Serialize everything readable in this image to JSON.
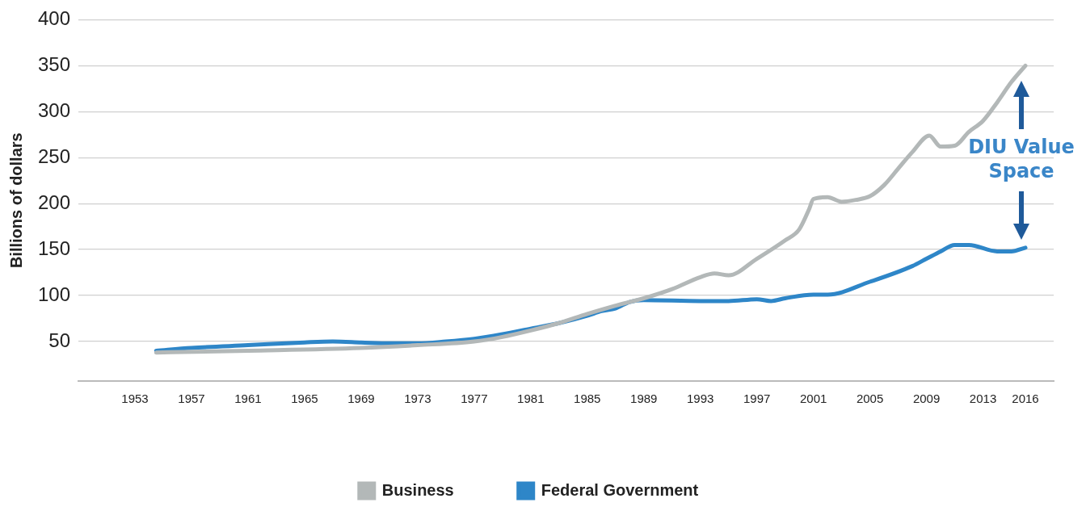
{
  "chart_data": {
    "type": "line",
    "ylabel": "Billions of dollars",
    "xlim": [
      1949,
      2018
    ],
    "xticks": [
      1953,
      1957,
      1961,
      1965,
      1969,
      1973,
      1977,
      1981,
      1985,
      1989,
      1993,
      1997,
      2001,
      2005,
      2009,
      2013,
      2016
    ],
    "ylim": [
      7,
      400
    ],
    "yticks": [
      50,
      100,
      150,
      200,
      250,
      300,
      350,
      400
    ],
    "grid": "y",
    "legend": "bottom",
    "marker": "none",
    "line_style": "solid",
    "series": [
      {
        "name": "Business",
        "color": "#b3b8b8",
        "x": [
          1954.5,
          1961,
          1969,
          1973,
          1977,
          1979,
          1981,
          1983,
          1985,
          1987,
          1989,
          1991,
          1993,
          1994,
          1995,
          1997,
          1999,
          2000,
          2000.7,
          2001,
          2002,
          2003,
          2004,
          2005,
          2006,
          2007,
          2008,
          2009.2,
          2010,
          2011,
          2012,
          2013,
          2014,
          2015,
          2016
        ],
        "values": [
          38,
          40,
          43,
          46,
          50,
          55,
          62,
          70,
          80,
          89,
          97,
          107,
          120,
          124,
          122,
          140,
          160,
          172,
          194,
          205,
          207,
          202,
          204,
          208,
          220,
          238,
          256,
          274,
          262,
          263,
          278,
          290,
          310,
          332,
          350
        ]
      },
      {
        "name": "Federal Government",
        "color": "#2e86c8",
        "x": [
          1954.5,
          1957,
          1961,
          1965,
          1967,
          1969,
          1971,
          1973,
          1975,
          1977,
          1979,
          1981,
          1983,
          1985,
          1986,
          1987,
          1988,
          1989,
          1993,
          1995,
          1997,
          1998,
          1999,
          2001,
          2002,
          2005,
          2008,
          2009,
          2010,
          2011,
          2012,
          2014,
          2015,
          2016
        ],
        "values": [
          40,
          43,
          46,
          49,
          50,
          49,
          48,
          48,
          50,
          53,
          58,
          64,
          70,
          78,
          83,
          86,
          93,
          95,
          94,
          94,
          96,
          94,
          97,
          101,
          101,
          115,
          132,
          140,
          148,
          155,
          155,
          148,
          148,
          152
        ]
      }
    ],
    "annotations": [
      "DIU Value\nSpace"
    ]
  }
}
